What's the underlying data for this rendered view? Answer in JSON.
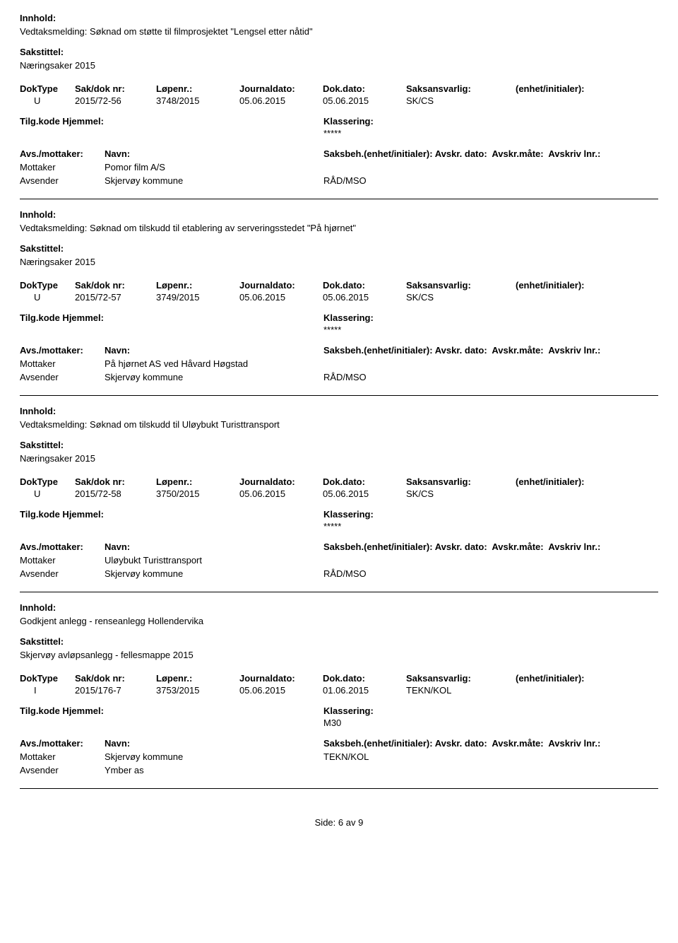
{
  "labels": {
    "innhold": "Innhold:",
    "sakstittel": "Sakstittel:",
    "doktype": "DokType",
    "sakdok": "Sak/dok nr:",
    "lopenr": "Løpenr.:",
    "journaldato": "Journaldato:",
    "dokdato": "Dok.dato:",
    "saksansvarlig": "Saksansvarlig:",
    "enhet": "(enhet/initialer):",
    "tilgkode": "Tilg.kode",
    "hjemmel": "Hjemmel:",
    "klassering": "Klassering:",
    "avsmottaker": "Avs./mottaker:",
    "navn": "Navn:",
    "saksbeh": "Saksbeh.(enhet/initialer):",
    "avskrdato": "Avskr. dato:",
    "avskrmate": "Avskr.måte:",
    "avskrivlnr": "Avskriv lnr.:",
    "mottaker": "Mottaker",
    "avsender": "Avsender"
  },
  "records": [
    {
      "innhold": "Vedtaksmelding: Søknad om støtte til filmprosjektet \"Lengsel etter nåtid\"",
      "sakstittel": "Næringsaker 2015",
      "doktype": "U",
      "sakdok": "2015/72-56",
      "lopenr": "3748/2015",
      "journaldato": "05.06.2015",
      "dokdato": "05.06.2015",
      "saksansvarlig": "SK/CS",
      "enhet": "",
      "klassering": "*****",
      "parties": [
        {
          "role": "Mottaker",
          "name": "Pomor film A/S",
          "sb": ""
        },
        {
          "role": "Avsender",
          "name": "Skjervøy kommune",
          "sb": "RÅD/MSO"
        }
      ]
    },
    {
      "innhold": "Vedtaksmelding: Søknad om tilskudd til etablering av serveringsstedet \"På hjørnet\"",
      "sakstittel": "Næringsaker 2015",
      "doktype": "U",
      "sakdok": "2015/72-57",
      "lopenr": "3749/2015",
      "journaldato": "05.06.2015",
      "dokdato": "05.06.2015",
      "saksansvarlig": "SK/CS",
      "enhet": "",
      "klassering": "*****",
      "parties": [
        {
          "role": "Mottaker",
          "name": "På hjørnet AS ved Håvard Høgstad",
          "sb": ""
        },
        {
          "role": "Avsender",
          "name": "Skjervøy kommune",
          "sb": "RÅD/MSO"
        }
      ]
    },
    {
      "innhold": "Vedtaksmelding: Søknad om tilskudd til Uløybukt Turisttransport",
      "sakstittel": "Næringsaker 2015",
      "doktype": "U",
      "sakdok": "2015/72-58",
      "lopenr": "3750/2015",
      "journaldato": "05.06.2015",
      "dokdato": "05.06.2015",
      "saksansvarlig": "SK/CS",
      "enhet": "",
      "klassering": "*****",
      "parties": [
        {
          "role": "Mottaker",
          "name": "Uløybukt Turisttransport",
          "sb": ""
        },
        {
          "role": "Avsender",
          "name": "Skjervøy kommune",
          "sb": "RÅD/MSO"
        }
      ]
    },
    {
      "innhold": "Godkjent anlegg - renseanlegg Hollendervika",
      "sakstittel": "Skjervøy avløpsanlegg - fellesmappe 2015",
      "doktype": "I",
      "sakdok": "2015/176-7",
      "lopenr": "3753/2015",
      "journaldato": "05.06.2015",
      "dokdato": "01.06.2015",
      "saksansvarlig": "TEKN/KOL",
      "enhet": "",
      "klassering": "M30",
      "parties": [
        {
          "role": "Mottaker",
          "name": "Skjervøy kommune",
          "sb": "TEKN/KOL"
        },
        {
          "role": "Avsender",
          "name": "Ymber as",
          "sb": ""
        }
      ]
    }
  ],
  "footer": {
    "side_label": "Side:",
    "page": "6",
    "av": "av",
    "total": "9"
  }
}
